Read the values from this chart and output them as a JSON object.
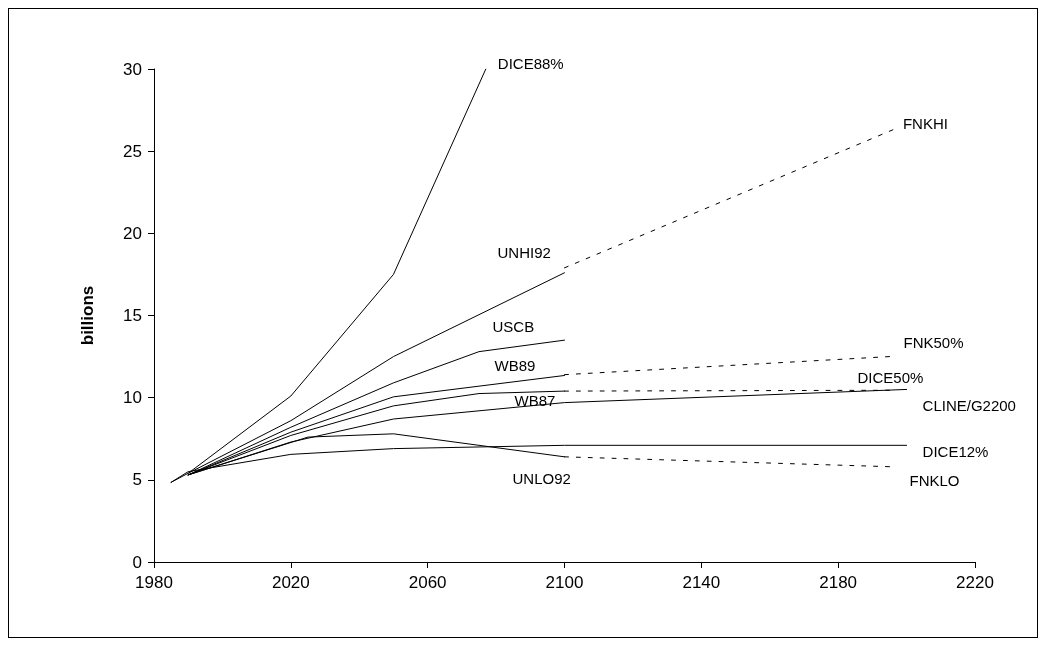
{
  "chart_data": {
    "type": "line",
    "ylabel": "billions",
    "xlim": [
      1980,
      2220
    ],
    "xticks": [
      1980,
      2020,
      2060,
      2100,
      2140,
      2180,
      2220
    ],
    "ylim": [
      0,
      30
    ],
    "yticks": [
      0,
      5,
      10,
      15,
      20,
      25,
      30
    ],
    "grid": false,
    "legend": false,
    "marker": "none",
    "line_style": "solid",
    "series": [
      {
        "name": "DICE88%",
        "color": "#000000",
        "x": [
          1985,
          1990,
          2020,
          2050,
          2077
        ],
        "values": [
          4.85,
          5.4,
          10.1,
          17.5,
          30
        ]
      },
      {
        "name": "FNKHI",
        "color": "#000000",
        "line_style": "dashed",
        "x": [
          2100,
          2196
        ],
        "values": [
          17.9,
          26.3
        ]
      },
      {
        "name": "UNHI92",
        "color": "#000000",
        "x": [
          1990,
          2020,
          2050,
          2100
        ],
        "values": [
          5.4,
          8.6,
          12.5,
          17.6
        ]
      },
      {
        "name": "USCB",
        "color": "#000000",
        "x": [
          1990,
          2020,
          2050,
          2075,
          2100
        ],
        "values": [
          5.3,
          8.2,
          10.9,
          12.8,
          13.5
        ]
      },
      {
        "name": "FNK50%",
        "color": "#000000",
        "line_style": "dashed",
        "x": [
          2100,
          2195
        ],
        "values": [
          11.4,
          12.5
        ]
      },
      {
        "name": "WB89",
        "color": "#000000",
        "x": [
          1990,
          2020,
          2050,
          2075,
          2100
        ],
        "values": [
          5.3,
          7.9,
          10.05,
          10.7,
          11.35
        ]
      },
      {
        "name": "WB87",
        "color": "#000000",
        "x": [
          1990,
          2020,
          2050,
          2075,
          2100
        ],
        "values": [
          5.3,
          7.7,
          9.5,
          10.25,
          10.4
        ]
      },
      {
        "name": "DICE50%",
        "color": "#000000",
        "line_style": "dashed",
        "x": [
          2100,
          2195
        ],
        "values": [
          10.4,
          10.45
        ]
      },
      {
        "name": "CLINE/G2200",
        "color": "#000000",
        "x": [
          1990,
          2020,
          2050,
          2100,
          2200
        ],
        "values": [
          5.3,
          7.3,
          8.7,
          9.7,
          10.5
        ]
      },
      {
        "name": "DICE12%",
        "color": "#000000",
        "x": [
          1985,
          1990,
          2020,
          2050,
          2100,
          2200
        ],
        "values": [
          4.85,
          5.5,
          6.55,
          6.9,
          7.1,
          7.1
        ]
      },
      {
        "name": "UNLO92",
        "color": "#000000",
        "x": [
          1990,
          2025,
          2050,
          2100
        ],
        "values": [
          5.3,
          7.6,
          7.8,
          6.4
        ]
      },
      {
        "name": "FNKLO",
        "color": "#000000",
        "line_style": "dashed",
        "x": [
          2100,
          2195
        ],
        "values": [
          6.4,
          5.8
        ]
      }
    ]
  }
}
